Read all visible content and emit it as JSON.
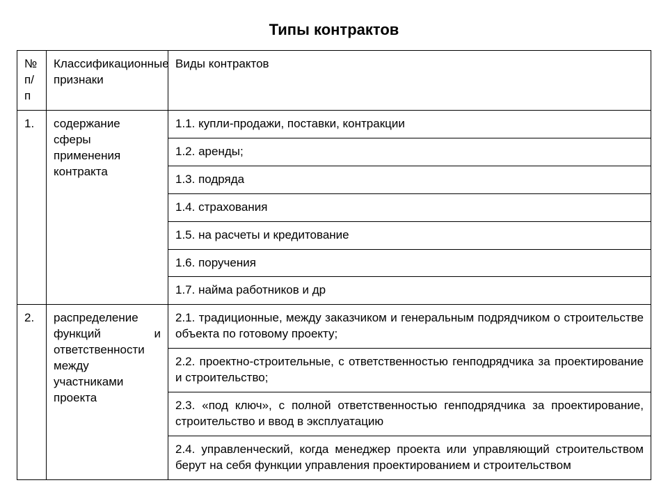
{
  "title": "Типы контрактов",
  "table": {
    "headers": {
      "col0": "№ п/п",
      "col1": "Классификационные признаки",
      "col2": "Виды контрактов"
    },
    "groups": [
      {
        "num": "1.",
        "attr": "содержание сферы применения контракта",
        "items": [
          "1.1. купли-продажи, поставки, контракции",
          "1.2. аренды;",
          "1.3. подряда",
          "1.4. страхования",
          "1.5. на расчеты и кредитование",
          "1.6. поручения",
          "1.7. найма работников и др"
        ]
      },
      {
        "num": "2.",
        "attr": "распределение функций и ответственности между участниками проекта",
        "items": [
          "2.1. традиционные, между заказчиком и генеральным подрядчиком о строительстве объекта по готовому проекту;",
          "2.2. проектно-строительные, с ответственностью генподрядчика за проектирование и строительство;",
          "2.3. «под ключ», с полной ответственностью генподрядчика за проектирование, строительство и ввод в эксплуатацию",
          "2.4. управленческий, когда менеджер проекта или управляющий строительством берут на себя функции управления проектированием и строительством"
        ]
      }
    ]
  },
  "style": {
    "background_color": "#ffffff",
    "text_color": "#000000",
    "border_color": "#000000",
    "title_fontsize": 22,
    "cell_fontsize": 17,
    "font_family": "Arial, sans-serif"
  }
}
